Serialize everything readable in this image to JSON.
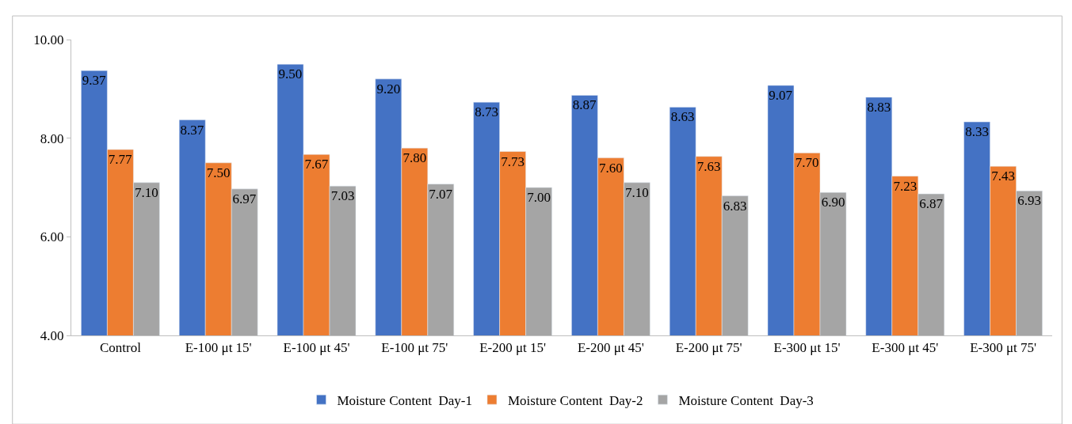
{
  "chart_data": {
    "type": "bar",
    "categories": [
      "Control",
      "E-100 μt 15'",
      "E-100 μt 45'",
      "E-100 μt 75'",
      "E-200 μt 15'",
      "E-200 μt 45'",
      "E-200 μt 75'",
      "E-300 μt 15'",
      "E-300 μt 45'",
      "E-300 μt 75'"
    ],
    "series": [
      {
        "name": "Moisture Content  Day-1",
        "color": "#4472c4",
        "values": [
          9.37,
          8.37,
          9.5,
          9.2,
          8.73,
          8.87,
          8.63,
          9.07,
          8.83,
          8.33
        ],
        "value_labels": [
          "9.37",
          "8.37",
          "9.50",
          "9.20",
          "8.73",
          "8.87",
          "8.63",
          "9.07",
          "8.83",
          "8.33"
        ]
      },
      {
        "name": "Moisture Content  Day-2",
        "color": "#ed7d31",
        "values": [
          7.77,
          7.5,
          7.67,
          7.8,
          7.73,
          7.6,
          7.63,
          7.7,
          7.23,
          7.43
        ],
        "value_labels": [
          "7.77",
          "7.50",
          "7.67",
          "7.80",
          "7.73",
          "7.60",
          "7.63",
          "7.70",
          "7.23",
          "7.43"
        ]
      },
      {
        "name": "Moisture Content  Day-3",
        "color": "#a5a5a5",
        "values": [
          7.1,
          6.97,
          7.03,
          7.07,
          7.0,
          7.1,
          6.83,
          6.9,
          6.87,
          6.93
        ],
        "value_labels": [
          "7.10",
          "6.97",
          "7.03",
          "7.07",
          "7.00",
          "7.10",
          "6.83",
          "6.90",
          "6.87",
          "6.93"
        ]
      }
    ],
    "ylim": [
      4,
      10
    ],
    "yticks": [
      {
        "value": 4,
        "label": "4.00"
      },
      {
        "value": 6,
        "label": "6.00"
      },
      {
        "value": 8,
        "label": "8.00"
      },
      {
        "value": 10,
        "label": "10.00"
      }
    ],
    "legend": "bottom"
  }
}
